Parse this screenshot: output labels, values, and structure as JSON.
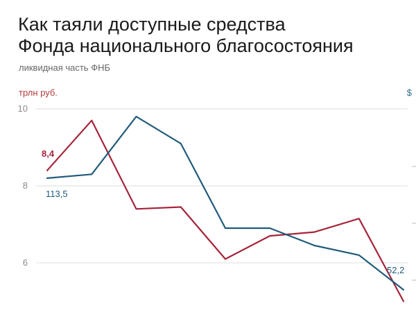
{
  "title_line1": "Как таяли доступные средства",
  "title_line2": "Фонда национального благосостояния",
  "subtitle": "ликвидная часть ФНБ",
  "unit_left": "трлн руб.",
  "unit_right": "$",
  "colors": {
    "rub": "#a5243a",
    "usd": "#1f5b7a",
    "grid": "#dddddd"
  },
  "chart_data": {
    "type": "line",
    "title": "Как таяли доступные средства Фонда национального благосостояния",
    "subtitle": "ликвидная часть ФНБ",
    "ylabel": "трлн руб.",
    "y2label": "$",
    "ylim": [
      5.1,
      10.2
    ],
    "yticks": [
      10,
      8,
      6
    ],
    "x": [
      1,
      2,
      3,
      4,
      5,
      6,
      7,
      8,
      9
    ],
    "series": [
      {
        "key": "rub",
        "values": [
          8.4,
          9.7,
          7.4,
          7.45,
          6.1,
          6.7,
          6.8,
          7.15,
          5.0
        ],
        "start_label": "8,4"
      },
      {
        "key": "usd",
        "values": [
          8.2,
          8.3,
          9.8,
          9.1,
          6.9,
          6.9,
          6.45,
          6.2,
          5.3
        ],
        "start_label": "113,5",
        "end_label": "52,2"
      }
    ],
    "grid": "horizontal",
    "legend": "none"
  }
}
